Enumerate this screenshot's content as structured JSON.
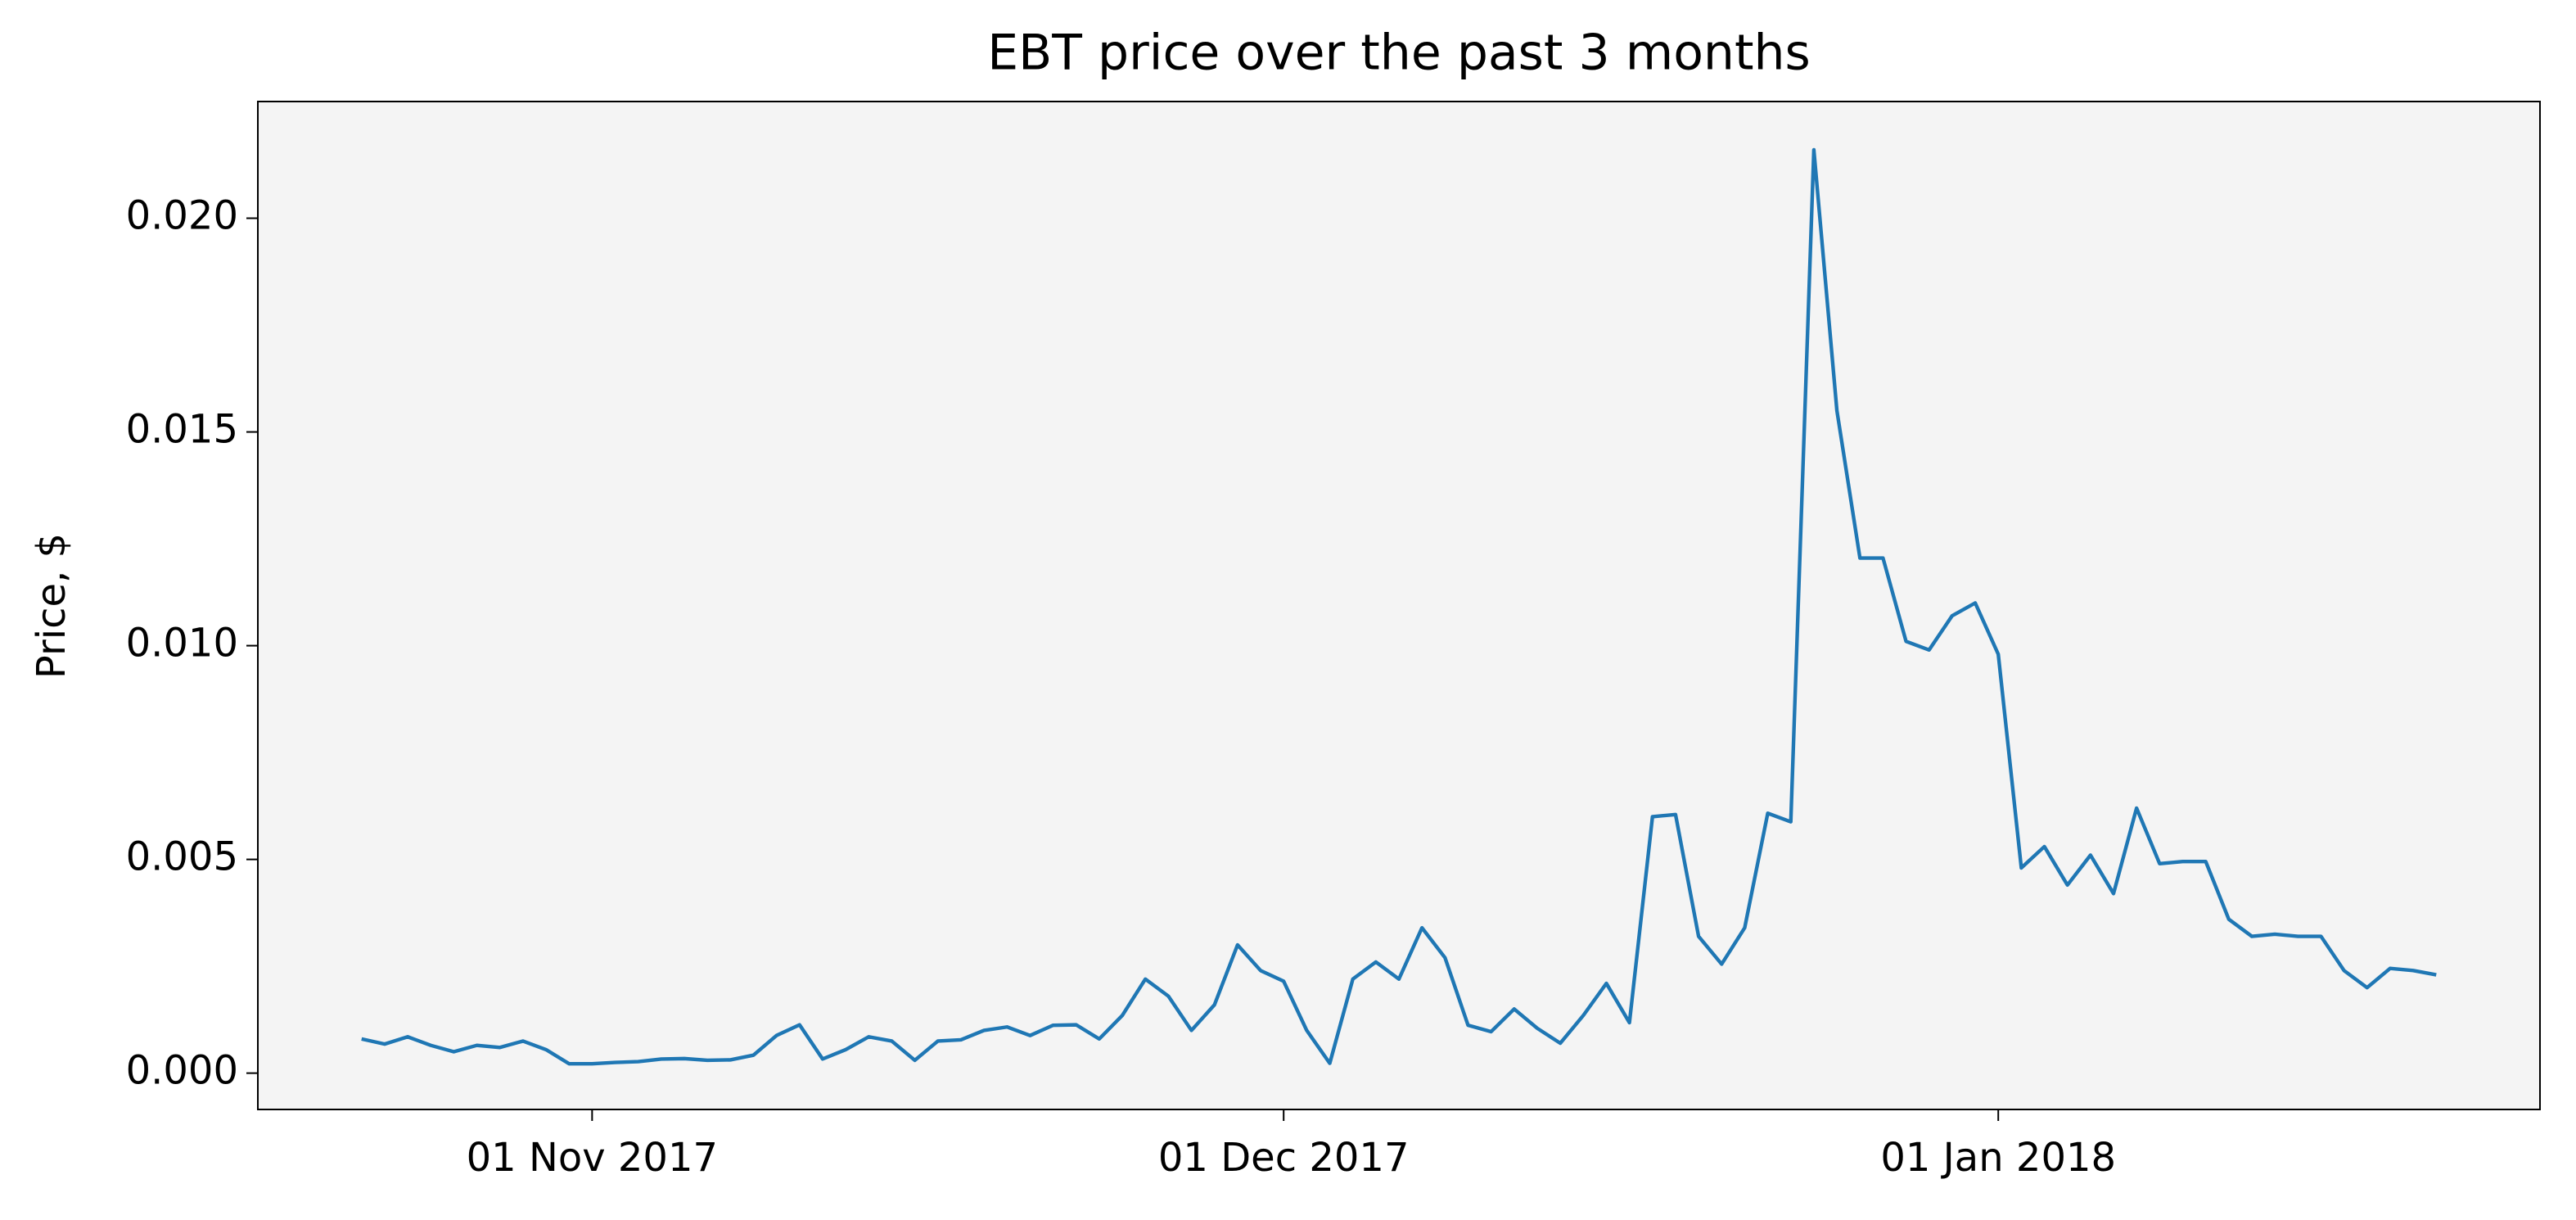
{
  "chart_data": {
    "type": "line",
    "title": "EBT price over the past 3 months",
    "ylabel": "Price, $",
    "x": [
      "2017-10-22",
      "2017-10-23",
      "2017-10-24",
      "2017-10-25",
      "2017-10-26",
      "2017-10-27",
      "2017-10-28",
      "2017-10-29",
      "2017-10-30",
      "2017-10-31",
      "2017-11-01",
      "2017-11-02",
      "2017-11-03",
      "2017-11-04",
      "2017-11-05",
      "2017-11-06",
      "2017-11-07",
      "2017-11-08",
      "2017-11-09",
      "2017-11-10",
      "2017-11-11",
      "2017-11-12",
      "2017-11-13",
      "2017-11-14",
      "2017-11-15",
      "2017-11-16",
      "2017-11-17",
      "2017-11-18",
      "2017-11-19",
      "2017-11-20",
      "2017-11-21",
      "2017-11-22",
      "2017-11-23",
      "2017-11-24",
      "2017-11-25",
      "2017-11-26",
      "2017-11-27",
      "2017-11-28",
      "2017-11-29",
      "2017-11-30",
      "2017-12-01",
      "2017-12-02",
      "2017-12-03",
      "2017-12-04",
      "2017-12-05",
      "2017-12-06",
      "2017-12-07",
      "2017-12-08",
      "2017-12-09",
      "2017-12-10",
      "2017-12-11",
      "2017-12-12",
      "2017-12-13",
      "2017-12-14",
      "2017-12-15",
      "2017-12-16",
      "2017-12-17",
      "2017-12-18",
      "2017-12-19",
      "2017-12-20",
      "2017-12-21",
      "2017-12-22",
      "2017-12-23",
      "2017-12-24",
      "2017-12-25",
      "2017-12-26",
      "2017-12-27",
      "2017-12-28",
      "2017-12-29",
      "2017-12-30",
      "2017-12-31",
      "2018-01-01",
      "2018-01-02",
      "2018-01-03",
      "2018-01-04",
      "2018-01-05",
      "2018-01-06",
      "2018-01-07",
      "2018-01-08",
      "2018-01-09",
      "2018-01-10",
      "2018-01-11",
      "2018-01-12",
      "2018-01-13",
      "2018-01-14",
      "2018-01-15",
      "2018-01-16",
      "2018-01-17",
      "2018-01-18",
      "2018-01-19",
      "2018-01-20"
    ],
    "series": [
      {
        "name": "EBT",
        "color": "#1f77b4",
        "values": [
          0.0008,
          0.00068,
          0.00085,
          0.00065,
          0.0005,
          0.00065,
          0.0006,
          0.00075,
          0.00055,
          0.00022,
          0.00022,
          0.00025,
          0.00027,
          0.00033,
          0.00034,
          0.0003,
          0.00031,
          0.00042,
          0.00088,
          0.00113,
          0.00033,
          0.00055,
          0.00085,
          0.00075,
          0.0003,
          0.00075,
          0.00078,
          0.001,
          0.00108,
          0.00088,
          0.00112,
          0.00113,
          0.0008,
          0.00135,
          0.0022,
          0.0018,
          0.001,
          0.0016,
          0.003,
          0.0024,
          0.00215,
          0.001,
          0.00023,
          0.0022,
          0.0026,
          0.0022,
          0.0034,
          0.0027,
          0.00112,
          0.00097,
          0.0015,
          0.00105,
          0.0007,
          0.00135,
          0.0021,
          0.00118,
          0.006,
          0.00605,
          0.0032,
          0.00255,
          0.0034,
          0.00608,
          0.00588,
          0.0216,
          0.0155,
          0.01205,
          0.01205,
          0.0101,
          0.0099,
          0.0107,
          0.011,
          0.0098,
          0.0048,
          0.0053,
          0.0044,
          0.0051,
          0.0042,
          0.0062,
          0.0049,
          0.00495,
          0.00495,
          0.0036,
          0.0032,
          0.00325,
          0.0032,
          0.0032,
          0.0024,
          0.002,
          0.00245,
          0.0024,
          0.0023
        ]
      }
    ],
    "xlim": [
      "2017-10-17T12:00",
      "2018-01-24T12:00"
    ],
    "xticks": [
      {
        "value": "2017-11-01",
        "label": "01 Nov 2017"
      },
      {
        "value": "2017-12-01",
        "label": "01 Dec 2017"
      },
      {
        "value": "2018-01-01",
        "label": "01 Jan 2018"
      }
    ],
    "ylim": [
      -0.00085,
      0.02273
    ],
    "yticks": [
      {
        "value": 0,
        "label": "0.000"
      },
      {
        "value": 0.005,
        "label": "0.005"
      },
      {
        "value": 0.01,
        "label": "0.010"
      },
      {
        "value": 0.015,
        "label": "0.015"
      },
      {
        "value": 0.02,
        "label": "0.020"
      }
    ],
    "grid": false
  }
}
